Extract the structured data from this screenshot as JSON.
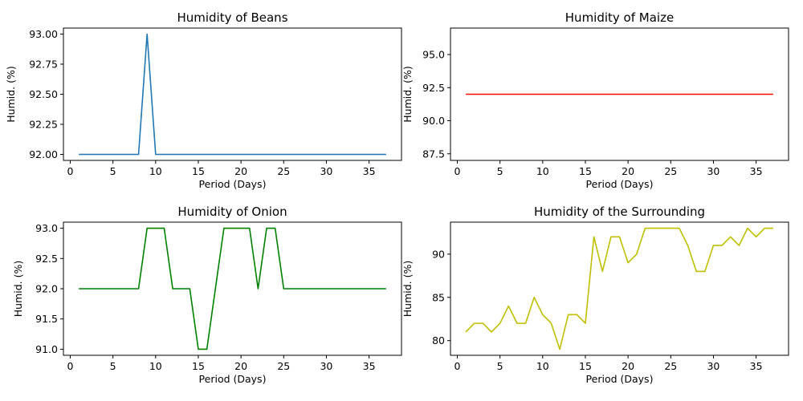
{
  "chart_data": [
    {
      "type": "line",
      "title": "Humidity of Beans",
      "xlabel": "Period (Days)",
      "ylabel": "Humid. (%)",
      "xlim": [
        -0.8,
        38.8
      ],
      "ylim": [
        91.95,
        93.05
      ],
      "xticks": [
        0,
        5,
        10,
        15,
        20,
        25,
        30,
        35
      ],
      "yticks": [
        92.0,
        92.25,
        92.5,
        92.75,
        93.0
      ],
      "ytick_decimals": 2,
      "color": "#1f77b4",
      "series": [
        {
          "x": [
            1,
            2,
            3,
            4,
            5,
            6,
            7,
            8,
            9,
            10,
            11,
            12,
            13,
            14,
            15,
            16,
            17,
            18,
            19,
            20,
            21,
            22,
            23,
            24,
            25,
            26,
            27,
            28,
            29,
            30,
            31,
            32,
            33,
            34,
            35,
            36,
            37
          ],
          "values": [
            92,
            92,
            92,
            92,
            92,
            92,
            92,
            92,
            93,
            92,
            92,
            92,
            92,
            92,
            92,
            92,
            92,
            92,
            92,
            92,
            92,
            92,
            92,
            92,
            92,
            92,
            92,
            92,
            92,
            92,
            92,
            92,
            92,
            92,
            92,
            92,
            92
          ]
        }
      ]
    },
    {
      "type": "line",
      "title": "Humidity of Maize",
      "xlabel": "Period (Days)",
      "ylabel": "Humid. (%)",
      "xlim": [
        -0.8,
        38.8
      ],
      "ylim": [
        87.0,
        97.0
      ],
      "xticks": [
        0,
        5,
        10,
        15,
        20,
        25,
        30,
        35
      ],
      "yticks": [
        87.5,
        90.0,
        92.5,
        95.0
      ],
      "ytick_decimals": 1,
      "color": "#ff0000",
      "series": [
        {
          "x": [
            1,
            2,
            3,
            4,
            5,
            6,
            7,
            8,
            9,
            10,
            11,
            12,
            13,
            14,
            15,
            16,
            17,
            18,
            19,
            20,
            21,
            22,
            23,
            24,
            25,
            26,
            27,
            28,
            29,
            30,
            31,
            32,
            33,
            34,
            35,
            36,
            37
          ],
          "values": [
            92,
            92,
            92,
            92,
            92,
            92,
            92,
            92,
            92,
            92,
            92,
            92,
            92,
            92,
            92,
            92,
            92,
            92,
            92,
            92,
            92,
            92,
            92,
            92,
            92,
            92,
            92,
            92,
            92,
            92,
            92,
            92,
            92,
            92,
            92,
            92,
            92
          ]
        }
      ]
    },
    {
      "type": "line",
      "title": "Humidity of Onion",
      "xlabel": "Period (Days)",
      "ylabel": "Humid. (%)",
      "xlim": [
        -0.8,
        38.8
      ],
      "ylim": [
        90.9,
        93.1
      ],
      "xticks": [
        0,
        5,
        10,
        15,
        20,
        25,
        30,
        35
      ],
      "yticks": [
        91.0,
        91.5,
        92.0,
        92.5,
        93.0
      ],
      "ytick_decimals": 1,
      "color": "#008000",
      "series": [
        {
          "x": [
            1,
            2,
            3,
            4,
            5,
            6,
            7,
            8,
            9,
            10,
            11,
            12,
            13,
            14,
            15,
            16,
            17,
            18,
            19,
            20,
            21,
            22,
            23,
            24,
            25,
            26,
            27,
            28,
            29,
            30,
            31,
            32,
            33,
            34,
            35,
            36,
            37
          ],
          "values": [
            92,
            92,
            92,
            92,
            92,
            92,
            92,
            92,
            93,
            93,
            93,
            92,
            92,
            92,
            91,
            91,
            92,
            93,
            93,
            93,
            93,
            92,
            93,
            93,
            92,
            92,
            92,
            92,
            92,
            92,
            92,
            92,
            92,
            92,
            92,
            92,
            92
          ]
        }
      ]
    },
    {
      "type": "line",
      "title": "Humidity of the Surrounding",
      "xlabel": "Period (Days)",
      "ylabel": "Humid. (%)",
      "xlim": [
        -0.8,
        38.8
      ],
      "ylim": [
        78.3,
        93.7
      ],
      "xticks": [
        0,
        5,
        10,
        15,
        20,
        25,
        30,
        35
      ],
      "yticks": [
        80,
        85,
        90
      ],
      "ytick_decimals": 0,
      "color": "#bfbf00",
      "series": [
        {
          "x": [
            1,
            2,
            3,
            4,
            5,
            6,
            7,
            8,
            9,
            10,
            11,
            12,
            13,
            14,
            15,
            16,
            17,
            18,
            19,
            20,
            21,
            22,
            23,
            24,
            25,
            26,
            27,
            28,
            29,
            30,
            31,
            32,
            33,
            34,
            35,
            36,
            37
          ],
          "values": [
            81,
            82,
            82,
            81,
            82,
            84,
            82,
            82,
            85,
            83,
            82,
            79,
            83,
            83,
            82,
            92,
            88,
            92,
            92,
            89,
            90,
            93,
            93,
            93,
            93,
            93,
            91,
            88,
            88,
            91,
            91,
            92,
            91,
            93,
            92,
            93,
            93
          ]
        }
      ]
    }
  ]
}
